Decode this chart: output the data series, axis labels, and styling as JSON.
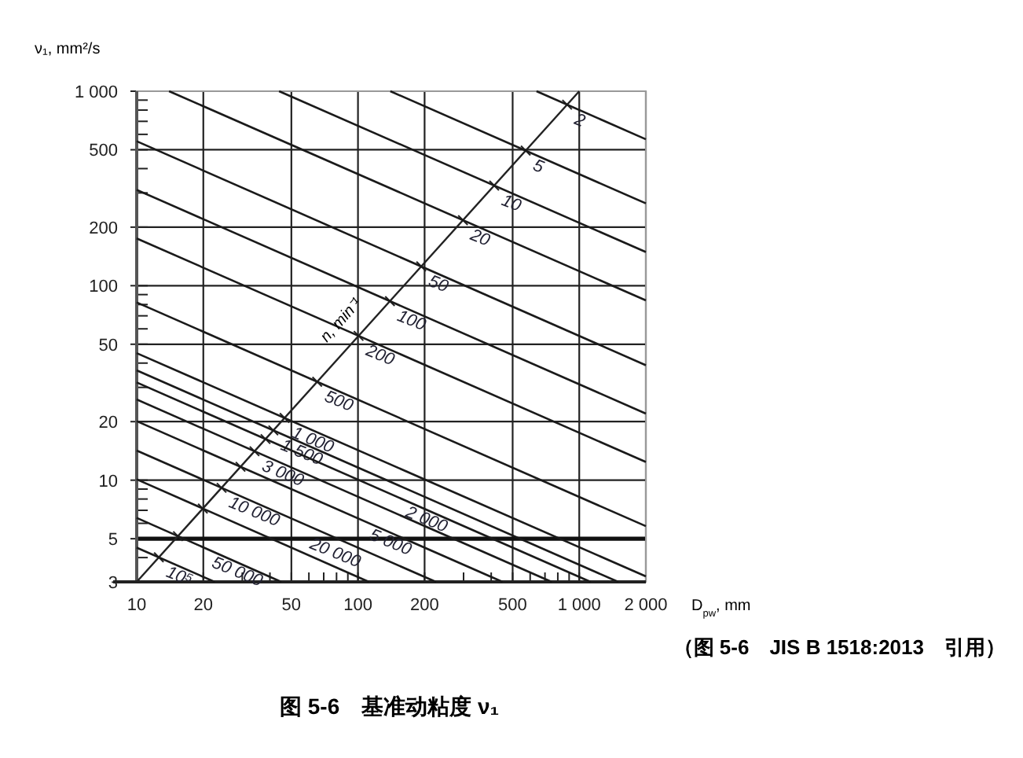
{
  "chart_data": {
    "type": "line",
    "title": "图 5-6　基准动粘度 ν₁",
    "xlabel": "D$_{pw}$, mm",
    "ylabel": "ν₁, mm²/s",
    "log": "xy",
    "grid": true,
    "legend": "center",
    "xlim": [
      10,
      2000
    ],
    "ylim": [
      3,
      1000
    ],
    "xticks": [
      10,
      20,
      50,
      100,
      200,
      500,
      {
        "value": 1000,
        "label": "1 000"
      },
      {
        "value": 2000,
        "label": "2 000"
      }
    ],
    "yticks": [
      3,
      5,
      10,
      20,
      50,
      100,
      200,
      500,
      {
        "value": 1000,
        "label": "1 000"
      }
    ],
    "ref_lines": [
      {
        "axis": "y",
        "value": 5,
        "color": "#111111"
      }
    ],
    "annotations": [
      "n, min⁻¹",
      "（图 5-6　JIS B 1518:2013　引用）"
    ],
    "series": [
      {
        "name": "2",
        "color": "#1a1a1a",
        "x": [
          641,
          2000
        ],
        "values": [
          1000,
          566
        ]
      },
      {
        "name": "5",
        "color": "#1a1a1a",
        "x": [
          140,
          2000
        ],
        "values": [
          1000,
          265
        ]
      },
      {
        "name": "10",
        "color": "#1a1a1a",
        "x": [
          44,
          2000
        ],
        "values": [
          1000,
          149
        ]
      },
      {
        "name": "20",
        "color": "#1a1a1a",
        "x": [
          14,
          2000
        ],
        "values": [
          1000,
          84
        ]
      },
      {
        "name": "50",
        "color": "#1a1a1a",
        "x": [
          10,
          2000
        ],
        "values": [
          553,
          39
        ]
      },
      {
        "name": "100",
        "color": "#1a1a1a",
        "x": [
          10,
          2000
        ],
        "values": [
          311,
          22
        ]
      },
      {
        "name": "200",
        "color": "#1a1a1a",
        "x": [
          10,
          2000
        ],
        "values": [
          175,
          12.4
        ]
      },
      {
        "name": "500",
        "color": "#1a1a1a",
        "x": [
          10,
          2000
        ],
        "values": [
          82,
          5.8
        ]
      },
      {
        "name": "1 000",
        "color": "#1a1a1a",
        "x": [
          10,
          2000
        ],
        "values": [
          45,
          3.2
        ]
      },
      {
        "name": "1 500",
        "color": "#1a1a1a",
        "x": [
          10,
          1500
        ],
        "values": [
          36.7,
          3
        ]
      },
      {
        "name": "2 000",
        "color": "#1a1a1a",
        "x": [
          10,
          1125
        ],
        "values": [
          31.8,
          3
        ]
      },
      {
        "name": "3 000",
        "color": "#1a1a1a",
        "x": [
          10,
          750
        ],
        "values": [
          26,
          3
        ]
      },
      {
        "name": "5 000",
        "color": "#1a1a1a",
        "x": [
          10,
          450
        ],
        "values": [
          20.1,
          3
        ]
      },
      {
        "name": "10 000",
        "color": "#1a1a1a",
        "x": [
          10,
          225
        ],
        "values": [
          14.2,
          3
        ]
      },
      {
        "name": "20 000",
        "color": "#1a1a1a",
        "x": [
          10,
          112
        ],
        "values": [
          10.1,
          3
        ]
      },
      {
        "name": "50 000",
        "color": "#1a1a1a",
        "x": [
          10,
          45
        ],
        "values": [
          6.4,
          3
        ]
      },
      {
        "name": "10⁵",
        "color": "#1a1a1a",
        "x": [
          10,
          22.5
        ],
        "values": [
          4.5,
          3
        ]
      }
    ]
  }
}
